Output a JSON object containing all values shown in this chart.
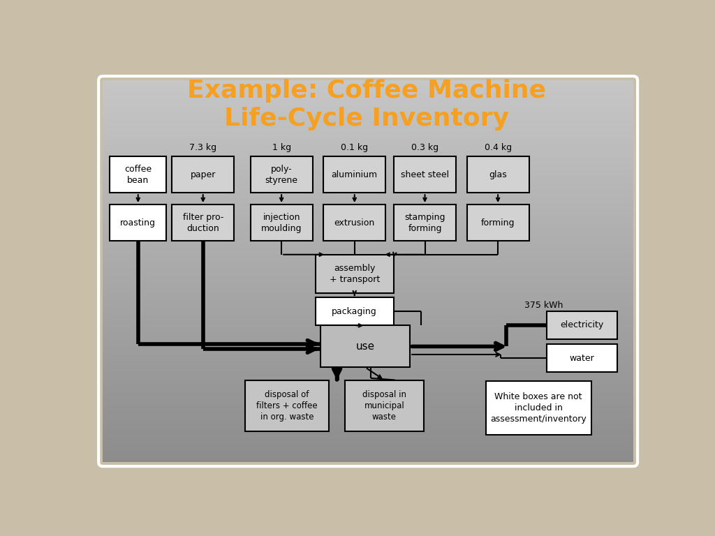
{
  "title_line1": "Example: Coffee Machine",
  "title_line2": "Life-Cycle Inventory",
  "title_color": "#F5A020",
  "title_fontsize": 26,
  "bg_outer": "#C9BFA9",
  "bg_inner_top": "#B8B8B8",
  "bg_inner_bot": "#888888",
  "legend_text": "White boxes are not\nincluded in\nassessment/inventory",
  "weights": [
    "7.3 kg",
    "1 kg",
    "0.1 kg",
    "0.3 kg",
    "0.4 kg"
  ]
}
